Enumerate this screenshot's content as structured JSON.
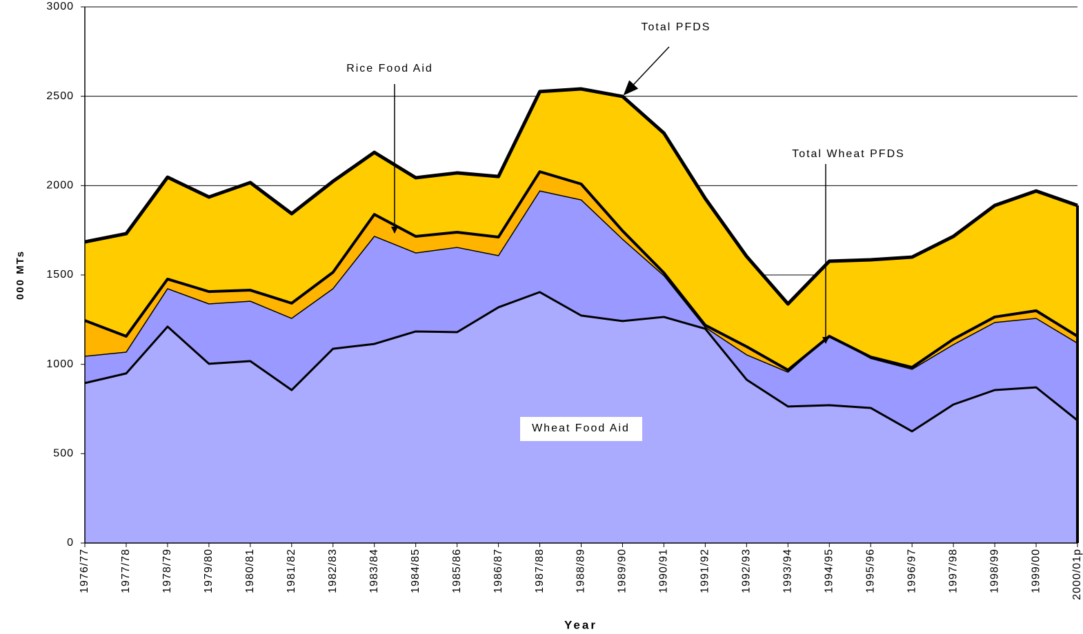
{
  "chart_data": {
    "type": "area",
    "x_label": "Year",
    "y_label": "000 MTs",
    "categories": [
      "1976/77",
      "1977/78",
      "1978/79",
      "1979/80",
      "1980/81",
      "1981/82",
      "1982/83",
      "1983/84",
      "1984/85",
      "1985/86",
      "1986/87",
      "1987/88",
      "1988/89",
      "1989/90",
      "1990/91",
      "1991/92",
      "1992/93",
      "1993/94",
      "1994/95",
      "1995/96",
      "1996/97",
      "1997/98",
      "1998/99",
      "1999/00",
      "2000/01p"
    ],
    "series": [
      {
        "color": "#ffcc00",
        "line_width": 5,
        "values": [
          1685,
          1731,
          2047,
          1936,
          2017,
          1843,
          2024,
          2186,
          2044,
          2071,
          2051,
          2526,
          2541,
          2499,
          2294,
          1928,
          1604,
          1338,
          1577,
          1585,
          1600,
          1716,
          1889,
          1970,
          1889
        ]
      },
      {
        "color": "#ffb400",
        "line_width": 4,
        "values": [
          1245,
          1157,
          1477,
          1407,
          1415,
          1342,
          1515,
          1839,
          1716,
          1739,
          1712,
          2078,
          2009,
          1747,
          1512,
          1219,
          1099,
          968,
          1157,
          1041,
          983,
          1141,
          1265,
          1300,
          1157
        ]
      },
      {
        "color": "#9999ff",
        "line_width": 1.5,
        "values": [
          1045,
          1068,
          1423,
          1338,
          1353,
          1257,
          1423,
          1716,
          1623,
          1654,
          1608,
          1970,
          1920,
          1700,
          1496,
          1207,
          1053,
          956,
          1160,
          1033,
          972,
          1110,
          1234,
          1257,
          1118
        ]
      },
      {
        "color": "#aaaaff",
        "line_width": 3,
        "values": [
          895,
          949,
          1211,
          1003,
          1018,
          856,
          1087,
          1114,
          1184,
          1180,
          1319,
          1404,
          1273,
          1242,
          1265,
          1199,
          914,
          764,
          771,
          756,
          625,
          775,
          856,
          871,
          686
        ]
      }
    ],
    "annotations": [
      "Total PFDS",
      "Rice Food Aid",
      "Total Wheat PFDS",
      "Wheat Food Aid"
    ],
    "ylim": [
      0,
      3000
    ],
    "yticks": [
      0,
      500,
      1000,
      1500,
      2000,
      2500,
      3000
    ],
    "grid": true
  }
}
